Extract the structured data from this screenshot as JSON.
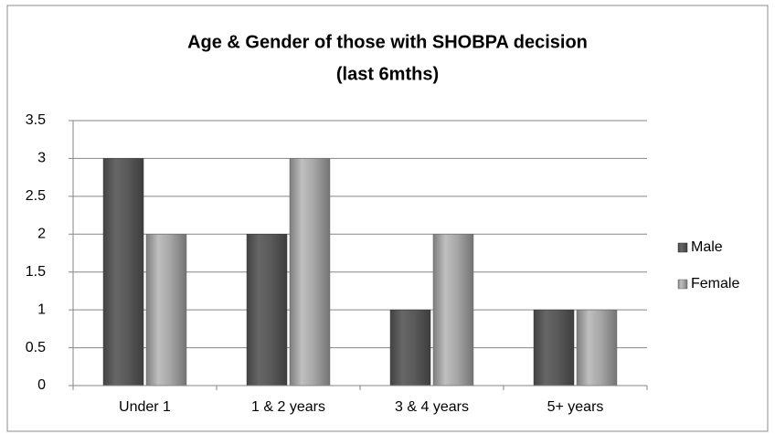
{
  "chart_data": {
    "type": "bar",
    "title": [
      "Age & Gender of those with SHOBPA decision",
      "(last 6mths)"
    ],
    "categories": [
      "Under 1",
      "1 & 2 years",
      "3 & 4 years",
      "5+ years"
    ],
    "series": [
      {
        "name": "Male",
        "color": "#595959",
        "values": [
          3,
          2,
          1,
          1
        ]
      },
      {
        "name": "Female",
        "color": "#a6a6a6",
        "values": [
          2,
          3,
          2,
          1
        ]
      }
    ],
    "ylim": [
      0,
      3.5
    ],
    "yticks": [
      0,
      0.5,
      1,
      1.5,
      2,
      2.5,
      3,
      3.5
    ],
    "grid": true,
    "legend": "right"
  }
}
